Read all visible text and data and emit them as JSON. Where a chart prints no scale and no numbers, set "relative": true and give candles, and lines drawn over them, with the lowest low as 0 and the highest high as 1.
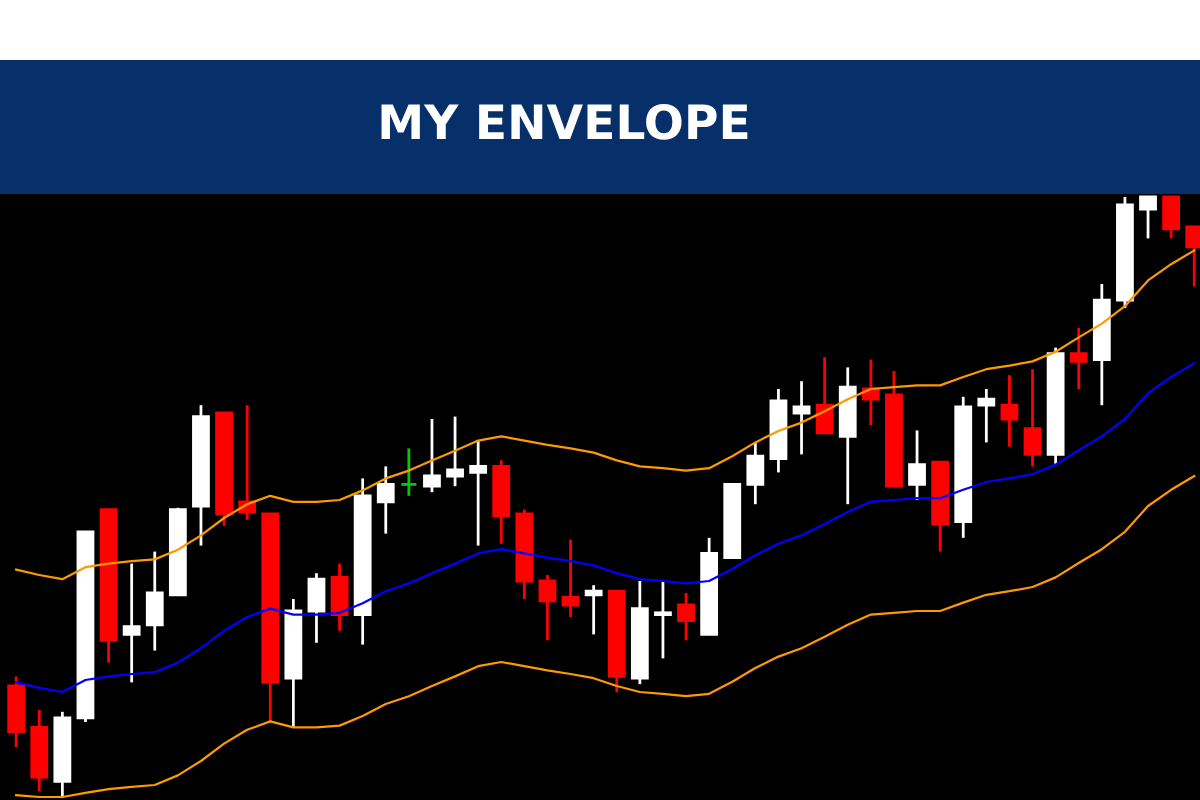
{
  "chart_data": {
    "type": "candlestick",
    "title": "MY ENVELOPE",
    "relative": true,
    "categories": [
      null,
      null,
      null,
      null,
      null,
      null,
      null,
      null,
      null,
      null,
      null,
      null,
      null,
      null,
      null,
      null,
      null,
      null,
      null,
      null,
      null,
      null,
      null,
      null,
      null,
      null,
      null,
      null,
      null,
      null,
      null,
      null,
      null,
      null,
      null,
      null,
      null,
      null,
      null,
      null,
      null,
      null,
      null,
      null,
      null,
      null,
      null,
      null,
      null,
      null,
      null,
      null
    ],
    "ohlc": [
      [
        0.185,
        0.201,
        0.083,
        0.109
      ],
      [
        0.116,
        0.145,
        0.01,
        0.033
      ],
      [
        0.026,
        0.142,
        0,
        0.132
      ],
      [
        0.132,
        0.442,
        0.125,
        0.442
      ],
      [
        0.479,
        0.479,
        0.224,
        0.261
      ],
      [
        0.271,
        0.389,
        0.191,
        0.284
      ],
      [
        0.287,
        0.409,
        0.244,
        0.34
      ],
      [
        0.337,
        0.482,
        0.337,
        0.479
      ],
      [
        0.485,
        0.653,
        0.419,
        0.634
      ],
      [
        0.64,
        0.64,
        0.452,
        0.472
      ],
      [
        0.492,
        0.653,
        0.462,
        0.475
      ],
      [
        0.472,
        0.472,
        0.125,
        0.191
      ],
      [
        0.198,
        0.33,
        0.116,
        0.31
      ],
      [
        0.31,
        0.373,
        0.257,
        0.363
      ],
      [
        0.366,
        0.389,
        0.277,
        0.304
      ],
      [
        0.304,
        0.531,
        0.254,
        0.502
      ],
      [
        0.492,
        0.551,
        0.439,
        0.521
      ],
      [
        0.521,
        0.581,
        0.502,
        0.521
      ],
      [
        0.518,
        0.63,
        0.508,
        0.535
      ],
      [
        0.535,
        0.634,
        0.518,
        0.545
      ],
      [
        0.541,
        0.594,
        0.419,
        0.551
      ],
      [
        0.551,
        0.561,
        0.422,
        0.469
      ],
      [
        0.472,
        0.479,
        0.33,
        0.36
      ],
      [
        0.36,
        0.37,
        0.261,
        0.327
      ],
      [
        0.333,
        0.429,
        0.3,
        0.32
      ],
      [
        0.337,
        0.353,
        0.271,
        0.343
      ],
      [
        0.343,
        0.343,
        0.175,
        0.201
      ],
      [
        0.198,
        0.36,
        0.188,
        0.314
      ],
      [
        0.304,
        0.36,
        0.231,
        0.307
      ],
      [
        0.32,
        0.34,
        0.261,
        0.294
      ],
      [
        0.271,
        0.432,
        0.271,
        0.406
      ],
      [
        0.399,
        0.521,
        0.399,
        0.521
      ],
      [
        0.521,
        0.591,
        0.488,
        0.568
      ],
      [
        0.564,
        0.68,
        0.541,
        0.66
      ],
      [
        0.64,
        0.693,
        0.571,
        0.65
      ],
      [
        0.653,
        0.733,
        0.607,
        0.607
      ],
      [
        0.601,
        0.716,
        0.488,
        0.683
      ],
      [
        0.68,
        0.729,
        0.62,
        0.663
      ],
      [
        0.67,
        0.71,
        0.518,
        0.518
      ],
      [
        0.521,
        0.611,
        0.495,
        0.554
      ],
      [
        0.558,
        0.558,
        0.409,
        0.455
      ],
      [
        0.459,
        0.667,
        0.432,
        0.65
      ],
      [
        0.653,
        0.68,
        0.591,
        0.663
      ],
      [
        0.653,
        0.703,
        0.584,
        0.63
      ],
      [
        0.614,
        0.713,
        0.551,
        0.571
      ],
      [
        0.571,
        0.749,
        0.554,
        0.739
      ],
      [
        0.739,
        0.782,
        0.68,
        0.726
      ],
      [
        0.729,
        0.855,
        0.653,
        0.828
      ],
      [
        0.828,
        1,
        0.815,
        0.987
      ],
      [
        0.98,
        1,
        0.931,
        1
      ],
      [
        1,
        1,
        0.931,
        0.947
      ],
      [
        0.95,
        0.95,
        0.851,
        0.917
      ]
    ],
    "colors": [
      "#ff0000",
      "#ff0000",
      "#ffffff",
      "#ffffff",
      "#ff0000",
      "#ffffff",
      "#ffffff",
      "#ffffff",
      "#ffffff",
      "#ff0000",
      "#ff0000",
      "#ff0000",
      "#ffffff",
      "#ffffff",
      "#ff0000",
      "#ffffff",
      "#ffffff",
      "#00cc00",
      "#ffffff",
      "#ffffff",
      "#ffffff",
      "#ff0000",
      "#ff0000",
      "#ff0000",
      "#ff0000",
      "#ffffff",
      "#ff0000",
      "#ffffff",
      "#ffffff",
      "#ff0000",
      "#ffffff",
      "#ffffff",
      "#ffffff",
      "#ffffff",
      "#ffffff",
      "#ff0000",
      "#ffffff",
      "#ff0000",
      "#ff0000",
      "#ffffff",
      "#ff0000",
      "#ffffff",
      "#ffffff",
      "#ff0000",
      "#ff0000",
      "#ffffff",
      "#ff0000",
      "#ffffff",
      "#ffffff",
      "#ffffff",
      "#ff0000",
      "#ff0000"
    ],
    "series": [
      {
        "type": "line",
        "color": "#ff9900",
        "values": [
          0.379,
          0.37,
          0.363,
          0.383,
          0.389,
          0.393,
          0.396,
          0.412,
          0.436,
          0.465,
          0.488,
          0.502,
          0.492,
          0.492,
          0.495,
          0.511,
          0.531,
          0.544,
          0.561,
          0.577,
          0.594,
          0.601,
          0.594,
          0.587,
          0.581,
          0.574,
          0.561,
          0.551,
          0.548,
          0.544,
          0.548,
          0.568,
          0.591,
          0.61,
          0.624,
          0.643,
          0.663,
          0.68,
          0.683,
          0.686,
          0.686,
          0.7,
          0.713,
          0.719,
          0.726,
          0.742,
          0.766,
          0.789,
          0.818,
          0.861,
          0.888,
          0.911
        ]
      },
      {
        "type": "line",
        "color": "#0000ff",
        "values": [
          0.191,
          0.182,
          0.175,
          0.195,
          0.201,
          0.205,
          0.208,
          0.224,
          0.248,
          0.277,
          0.3,
          0.314,
          0.304,
          0.304,
          0.307,
          0.323,
          0.343,
          0.356,
          0.373,
          0.389,
          0.406,
          0.413,
          0.406,
          0.399,
          0.393,
          0.386,
          0.373,
          0.363,
          0.36,
          0.356,
          0.36,
          0.38,
          0.403,
          0.422,
          0.436,
          0.455,
          0.475,
          0.492,
          0.495,
          0.498,
          0.498,
          0.512,
          0.525,
          0.531,
          0.538,
          0.554,
          0.578,
          0.601,
          0.63,
          0.673,
          0.7,
          0.723
        ]
      },
      {
        "type": "line",
        "color": "#ff9900",
        "values": [
          0.003,
          0,
          0,
          0.007,
          0.013,
          0.017,
          0.02,
          0.036,
          0.06,
          0.089,
          0.112,
          0.126,
          0.116,
          0.116,
          0.119,
          0.135,
          0.155,
          0.168,
          0.185,
          0.201,
          0.218,
          0.225,
          0.218,
          0.211,
          0.205,
          0.198,
          0.185,
          0.175,
          0.172,
          0.168,
          0.172,
          0.192,
          0.215,
          0.234,
          0.248,
          0.267,
          0.287,
          0.304,
          0.307,
          0.31,
          0.31,
          0.324,
          0.337,
          0.343,
          0.35,
          0.366,
          0.39,
          0.413,
          0.442,
          0.485,
          0.512,
          0.535
        ]
      }
    ]
  }
}
